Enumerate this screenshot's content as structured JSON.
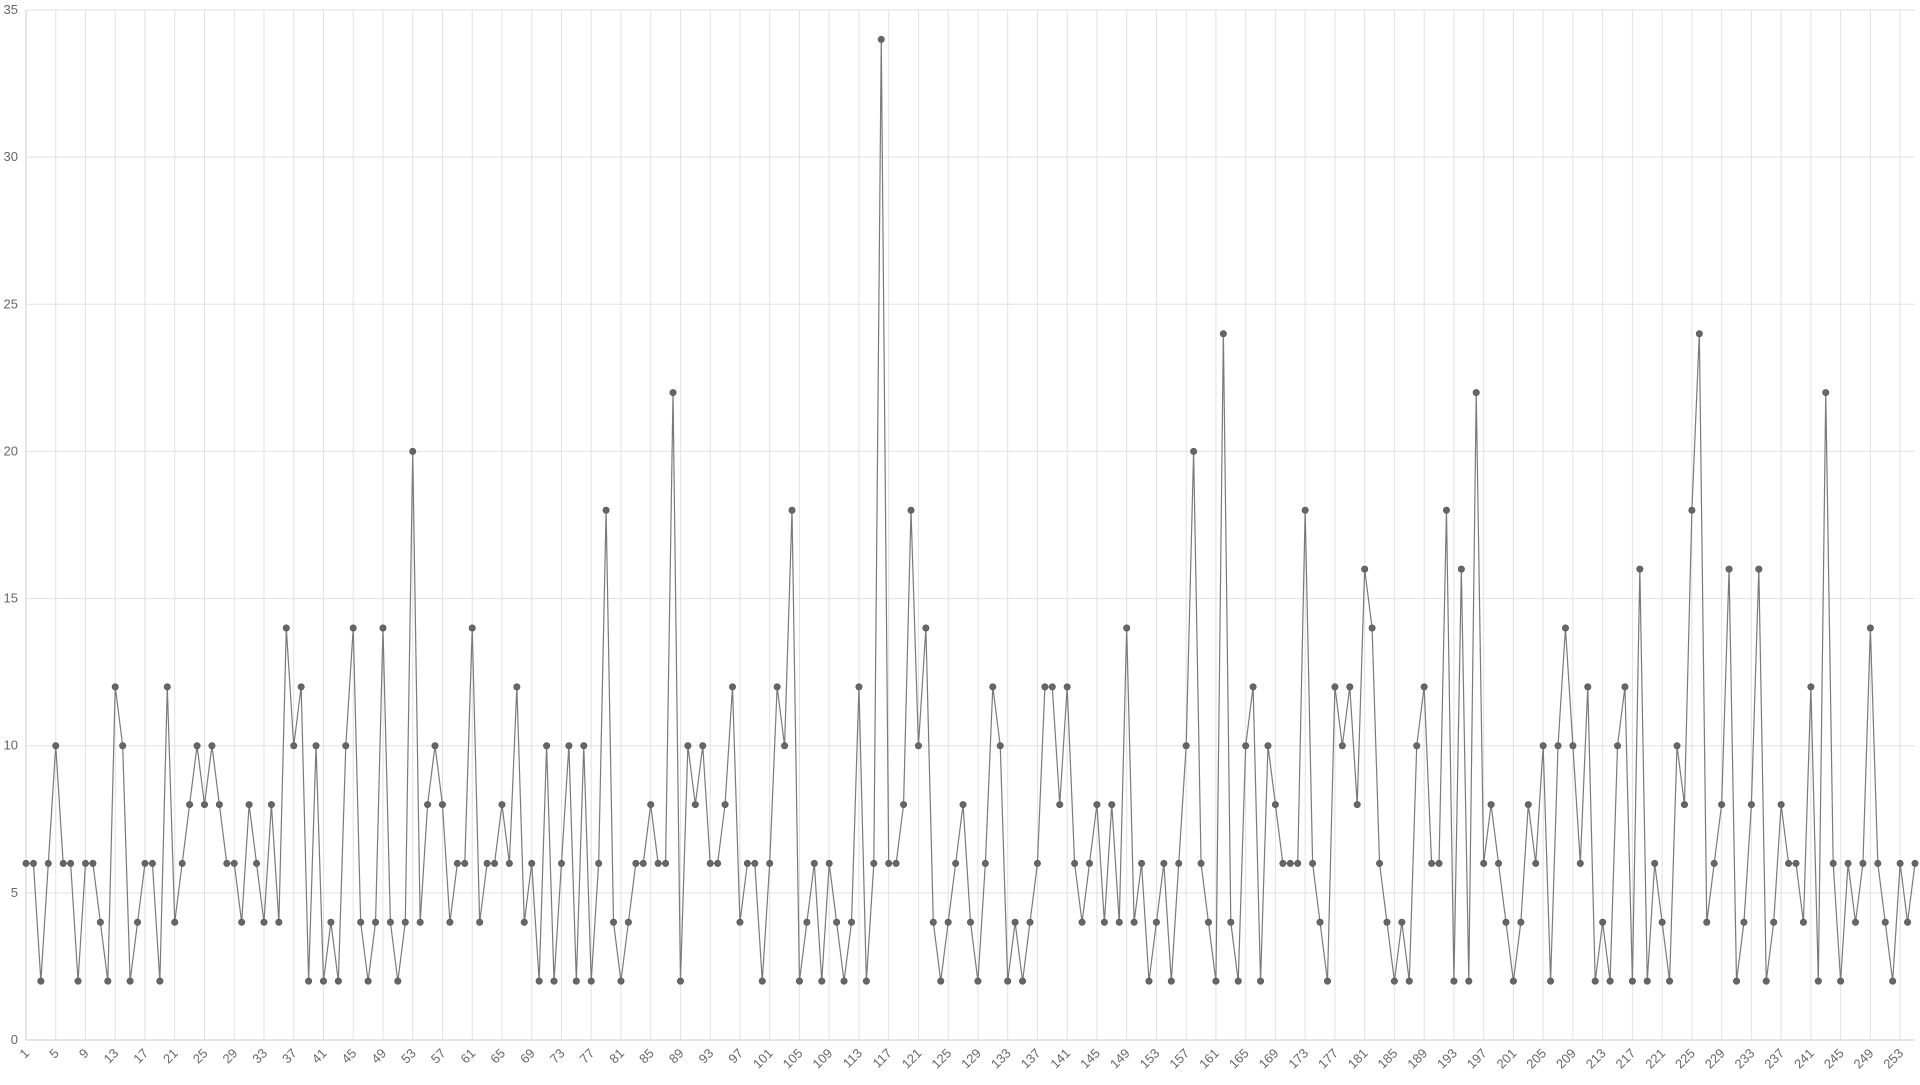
{
  "chart_data": {
    "type": "line",
    "title": "",
    "xlabel": "",
    "ylabel": "",
    "x_start": 1,
    "x_end": 254,
    "xtick_step": 4,
    "ylim": [
      0,
      35
    ],
    "yticks": [
      "0",
      "5",
      "10",
      "15",
      "20",
      "25",
      "30",
      "35"
    ],
    "grid": true,
    "legend": "none",
    "colors": {
      "line": "#7a7a7a",
      "marker": "#666666",
      "grid": "#e2e2e2",
      "axis": "#cccccc",
      "tick_text": "#666666"
    },
    "series": [
      {
        "values": [
          6,
          6,
          2,
          6,
          10,
          6,
          6,
          2,
          6,
          6,
          4,
          2,
          12,
          10,
          2,
          4,
          6,
          6,
          2,
          12,
          4,
          6,
          8,
          10,
          8,
          10,
          8,
          6,
          6,
          4,
          8,
          6,
          4,
          8,
          4,
          14,
          10,
          12,
          2,
          10,
          2,
          4,
          2,
          10,
          14,
          4,
          2,
          4,
          14,
          4,
          2,
          4,
          20,
          4,
          8,
          10,
          8,
          4,
          6,
          6,
          14,
          4,
          6,
          6,
          8,
          6,
          12,
          4,
          6,
          2,
          10,
          2,
          6,
          10,
          2,
          10,
          2,
          6,
          18,
          4,
          2,
          4,
          6,
          6,
          8,
          6,
          6,
          22,
          2,
          10,
          8,
          10,
          6,
          6,
          8,
          12,
          4,
          6,
          6,
          2,
          6,
          12,
          10,
          18,
          2,
          4,
          6,
          2,
          6,
          4,
          2,
          4,
          12,
          2,
          6,
          34,
          6,
          6,
          8,
          18,
          10,
          14,
          4,
          2,
          4,
          6,
          8,
          4,
          2,
          6,
          12,
          10,
          2,
          4,
          2,
          4,
          6,
          12,
          12,
          8,
          12,
          6,
          4,
          6,
          8,
          4,
          8,
          4,
          14,
          4,
          6,
          2,
          4,
          6,
          2,
          6,
          10,
          20,
          6,
          4,
          2,
          24,
          4,
          2,
          10,
          12,
          2,
          10,
          8,
          6,
          6,
          6,
          18,
          6,
          4,
          2,
          12,
          10,
          12,
          8,
          16,
          14,
          6,
          4,
          2,
          4,
          2,
          10,
          12,
          6,
          6,
          18,
          2,
          16,
          2,
          22,
          6,
          8,
          6,
          4,
          2,
          4,
          8,
          6,
          10,
          2,
          10,
          14,
          10,
          6,
          12,
          2,
          4,
          2,
          10,
          12,
          2,
          16,
          2,
          6,
          4,
          2,
          10,
          8,
          18,
          24,
          4,
          6,
          8,
          16,
          2,
          4,
          8,
          16,
          2,
          4,
          8,
          6,
          6,
          4,
          12,
          2,
          22,
          6,
          2,
          6,
          4,
          6,
          14,
          6,
          4,
          2,
          6,
          4,
          6
        ]
      }
    ]
  }
}
